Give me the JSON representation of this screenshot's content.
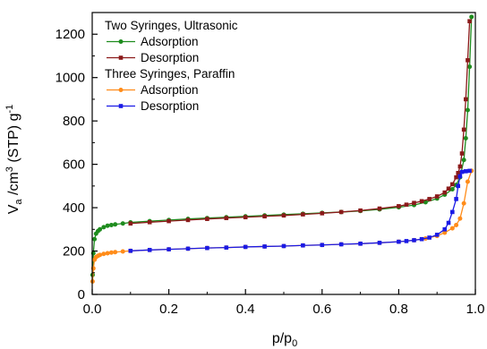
{
  "chart_data": {
    "type": "line",
    "xlabel": "p/p0",
    "xlabel_main": "p/p",
    "xlabel_sub": "0",
    "ylabel": "Va /cm3 (STP) g-1",
    "ylabel_parts": {
      "v": "V",
      "a": "a",
      "mid": " /cm",
      "exp3": "3",
      "stp": " (STP) g",
      "expm1": "-1"
    },
    "xlim": [
      0.0,
      1.0
    ],
    "ylim": [
      0,
      1300
    ],
    "x_ticks": [
      "0.0",
      "0.2",
      "0.4",
      "0.6",
      "0.8",
      "1.0"
    ],
    "y_ticks": [
      "0",
      "200",
      "400",
      "600",
      "800",
      "1000",
      "1200"
    ],
    "grid": false,
    "legend_position": "top-left",
    "legend_groups": [
      {
        "title": "Two Syringes, Ultrasonic",
        "entries": [
          0,
          1
        ]
      },
      {
        "title": "Three Syringes, Paraffin",
        "entries": [
          2,
          3
        ]
      }
    ],
    "series": [
      {
        "name": "Adsorption",
        "group": "Two Syringes, Ultrasonic",
        "color": "#1e8c1e",
        "marker": "circle",
        "x": [
          0.001,
          0.003,
          0.006,
          0.01,
          0.015,
          0.02,
          0.03,
          0.04,
          0.05,
          0.06,
          0.08,
          0.1,
          0.15,
          0.2,
          0.25,
          0.3,
          0.35,
          0.4,
          0.45,
          0.5,
          0.55,
          0.6,
          0.65,
          0.7,
          0.75,
          0.8,
          0.84,
          0.87,
          0.9,
          0.92,
          0.94,
          0.95,
          0.96,
          0.97,
          0.975,
          0.98,
          0.985,
          0.99
        ],
        "y": [
          90,
          190,
          255,
          280,
          292,
          300,
          310,
          317,
          320,
          323,
          327,
          332,
          338,
          343,
          348,
          352,
          356,
          360,
          364,
          368,
          372,
          376,
          380,
          385,
          392,
          402,
          412,
          425,
          442,
          460,
          485,
          505,
          540,
          620,
          720,
          850,
          1050,
          1280
        ]
      },
      {
        "name": "Desorption",
        "group": "Two Syringes, Ultrasonic",
        "color": "#8b1a1a",
        "marker": "square",
        "x": [
          0.985,
          0.98,
          0.975,
          0.97,
          0.965,
          0.96,
          0.955,
          0.95,
          0.94,
          0.93,
          0.92,
          0.9,
          0.88,
          0.86,
          0.84,
          0.82,
          0.8,
          0.75,
          0.7,
          0.65,
          0.6,
          0.55,
          0.5,
          0.45,
          0.4,
          0.35,
          0.3,
          0.25,
          0.2,
          0.15,
          0.1
        ],
        "y": [
          1260,
          1080,
          900,
          760,
          650,
          590,
          560,
          540,
          508,
          488,
          470,
          452,
          440,
          430,
          422,
          414,
          407,
          396,
          387,
          380,
          374,
          369,
          364,
          360,
          356,
          352,
          348,
          343,
          338,
          333,
          327
        ]
      },
      {
        "name": "Adsorption",
        "group": "Three Syringes, Paraffin",
        "color": "#ff8c1a",
        "marker": "circle",
        "x": [
          0.001,
          0.003,
          0.006,
          0.01,
          0.015,
          0.02,
          0.03,
          0.04,
          0.05,
          0.06,
          0.08,
          0.1,
          0.15,
          0.2,
          0.25,
          0.3,
          0.35,
          0.4,
          0.45,
          0.5,
          0.55,
          0.6,
          0.65,
          0.7,
          0.75,
          0.8,
          0.84,
          0.87,
          0.9,
          0.92,
          0.94,
          0.95,
          0.96,
          0.97,
          0.98,
          0.99
        ],
        "y": [
          60,
          120,
          160,
          172,
          178,
          182,
          187,
          190,
          193,
          195,
          198,
          201,
          205,
          208,
          211,
          214,
          216,
          219,
          221,
          223,
          226,
          228,
          231,
          234,
          238,
          243,
          250,
          258,
          270,
          285,
          305,
          320,
          350,
          420,
          520,
          570
        ]
      },
      {
        "name": "Desorption",
        "group": "Three Syringes, Paraffin",
        "color": "#1a1ae6",
        "marker": "square",
        "x": [
          0.985,
          0.975,
          0.965,
          0.96,
          0.955,
          0.95,
          0.94,
          0.93,
          0.92,
          0.9,
          0.88,
          0.86,
          0.84,
          0.82,
          0.8,
          0.75,
          0.7,
          0.65,
          0.6,
          0.55,
          0.5,
          0.45,
          0.4,
          0.35,
          0.3,
          0.25,
          0.2,
          0.15,
          0.1
        ],
        "y": [
          570,
          568,
          565,
          545,
          500,
          440,
          380,
          330,
          300,
          275,
          262,
          255,
          250,
          246,
          243,
          238,
          234,
          231,
          228,
          226,
          223,
          221,
          219,
          216,
          214,
          211,
          208,
          205,
          201
        ]
      }
    ]
  }
}
